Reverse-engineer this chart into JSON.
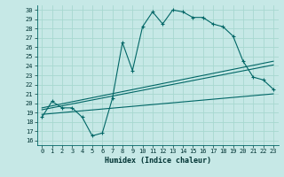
{
  "xlabel": "Humidex (Indice chaleur)",
  "bg_color": "#c6e8e6",
  "line_color": "#006666",
  "grid_color": "#a8d8d0",
  "xlim": [
    -0.5,
    23.5
  ],
  "ylim": [
    15.5,
    30.5
  ],
  "xticks": [
    0,
    1,
    2,
    3,
    4,
    5,
    6,
    7,
    8,
    9,
    10,
    11,
    12,
    13,
    14,
    15,
    16,
    17,
    18,
    19,
    20,
    21,
    22,
    23
  ],
  "yticks": [
    16,
    17,
    18,
    19,
    20,
    21,
    22,
    23,
    24,
    25,
    26,
    27,
    28,
    29,
    30
  ],
  "main_x": [
    0,
    1,
    2,
    3,
    4,
    5,
    6,
    7,
    8,
    9,
    10,
    11,
    12,
    13,
    14,
    15,
    16,
    17,
    18,
    19,
    20,
    21,
    22,
    23
  ],
  "main_y": [
    18.5,
    20.2,
    19.5,
    19.5,
    18.5,
    16.5,
    16.8,
    20.5,
    26.5,
    23.5,
    28.2,
    29.8,
    28.5,
    30.0,
    29.8,
    29.2,
    29.2,
    28.5,
    28.2,
    27.2,
    24.5,
    22.8,
    22.5,
    21.5
  ],
  "line1_x": [
    0,
    23
  ],
  "line1_y": [
    19.5,
    24.5
  ],
  "line2_x": [
    0,
    23
  ],
  "line2_y": [
    19.3,
    24.1
  ],
  "line3_x": [
    0,
    23
  ],
  "line3_y": [
    18.8,
    21.0
  ]
}
